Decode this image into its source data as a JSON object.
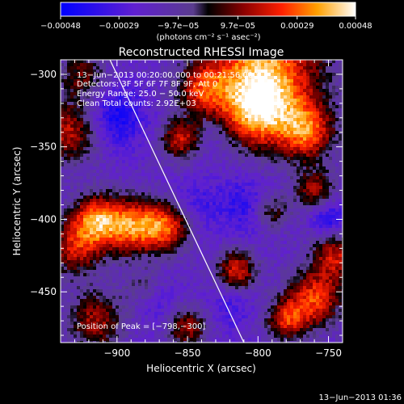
{
  "chart_data": {
    "type": "heatmap",
    "title": "Reconstructed RHESSI Image",
    "xlabel": "Heliocentric X (arcsec)",
    "ylabel": "Heliocentric Y (arcsec)",
    "xlim": [
      -940,
      -740
    ],
    "ylim": [
      -485,
      -290
    ],
    "x_ticks": [
      -900,
      -850,
      -800,
      -750
    ],
    "x_tick_labels": [
      "−900",
      "−850",
      "−800",
      "−750"
    ],
    "y_ticks": [
      -300,
      -350,
      -400,
      -450
    ],
    "y_tick_labels": [
      "−300",
      "−350",
      "−400",
      "−450"
    ],
    "colorbar": {
      "range": [
        -0.00048,
        0.00048
      ],
      "ticks": [
        -0.00048,
        -0.00029,
        -9.7e-05,
        9.7e-05,
        0.00029,
        0.00048
      ],
      "tick_labels": [
        "−0.00048",
        "−0.00029",
        "−9.7e−05",
        "9.7e−05",
        "0.00029",
        "0.00048"
      ],
      "unit_label": "(photons cm⁻² s⁻¹ asec⁻²)"
    },
    "annotations": [
      "13−Jun−2013 00:20:00.000 to 00:21:56.000",
      "Detectors: 3F 5F 6F 7F 8F 9F, Att 0",
      "Energy Range: 25.0 − 50.0 keV",
      "Clean    Total counts: 2.92E+03"
    ],
    "peak_label": "Position of Peak = [−798,−300]",
    "limb_line": [
      [
        -905,
        -290
      ],
      [
        -810,
        -485
      ]
    ],
    "blobs": [
      {
        "x": -796,
        "y": -296,
        "r": 30,
        "v": 0.00046
      },
      {
        "x": -800,
        "y": -325,
        "r": 18,
        "v": 0.00035
      },
      {
        "x": -915,
        "y": -400,
        "r": 12,
        "v": 0.0004
      },
      {
        "x": -890,
        "y": -405,
        "r": 14,
        "v": 0.00042
      },
      {
        "x": -865,
        "y": -405,
        "r": 12,
        "v": 0.00038
      },
      {
        "x": -930,
        "y": -420,
        "r": 14,
        "v": 0.0003
      },
      {
        "x": -935,
        "y": -340,
        "r": 16,
        "v": 0.0003
      },
      {
        "x": -925,
        "y": -300,
        "r": 12,
        "v": 0.0002
      },
      {
        "x": -840,
        "y": -310,
        "r": 12,
        "v": 0.00025
      },
      {
        "x": -855,
        "y": -345,
        "r": 10,
        "v": 0.0003
      },
      {
        "x": -765,
        "y": -340,
        "r": 14,
        "v": 0.00035
      },
      {
        "x": -760,
        "y": -380,
        "r": 10,
        "v": 0.00025
      },
      {
        "x": -745,
        "y": -425,
        "r": 12,
        "v": 0.0003
      },
      {
        "x": -760,
        "y": -455,
        "r": 14,
        "v": 0.00038
      },
      {
        "x": -780,
        "y": -470,
        "r": 10,
        "v": 0.0003
      },
      {
        "x": -815,
        "y": -435,
        "r": 10,
        "v": 0.00034
      },
      {
        "x": -850,
        "y": -475,
        "r": 10,
        "v": 0.00026
      },
      {
        "x": -915,
        "y": -470,
        "r": 14,
        "v": 0.00028
      },
      {
        "x": -880,
        "y": -450,
        "r": 10,
        "v": 0.00018
      },
      {
        "x": -790,
        "y": -395,
        "r": 9,
        "v": 0.0002
      },
      {
        "x": -900,
        "y": -330,
        "r": 14,
        "v": -0.0003
      },
      {
        "x": -845,
        "y": -390,
        "r": 12,
        "v": -0.00018
      },
      {
        "x": -810,
        "y": -390,
        "r": 14,
        "v": -0.00022
      },
      {
        "x": -875,
        "y": -455,
        "r": 10,
        "v": -0.00025
      },
      {
        "x": -750,
        "y": -400,
        "r": 8,
        "v": -0.0003
      },
      {
        "x": -830,
        "y": -345,
        "r": 10,
        "v": -0.00015
      },
      {
        "x": -820,
        "y": -460,
        "r": 10,
        "v": -0.00018
      }
    ]
  },
  "footer": {
    "timestamp": "13−Jun−2013 01:36"
  }
}
